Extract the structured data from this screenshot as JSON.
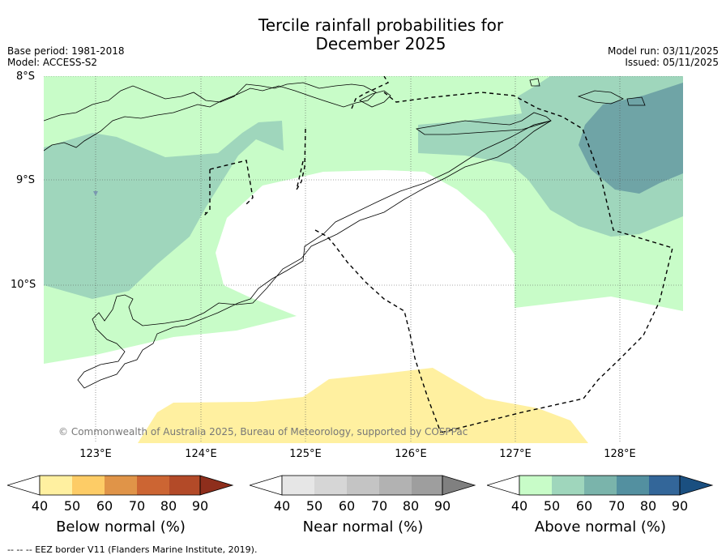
{
  "title_line1": "Tercile rainfall probabilities for",
  "title_line2": "December 2025",
  "base_period": "Base period: 1981-2018",
  "model": "Model: ACCESS-S2",
  "model_run": "Model run: 03/11/2025",
  "issued": "Issued: 05/11/2025",
  "lat_labels": [
    "8°S",
    "9°S",
    "10°S"
  ],
  "lon_labels": [
    "123°E",
    "124°E",
    "125°E",
    "126°E",
    "127°E",
    "128°E"
  ],
  "copyright": "© Commonwealth of Australia 2025, Bureau of Meteorology, supported by COSPPac",
  "colorbars": {
    "below": {
      "label": "Below normal (%)",
      "ticks": [
        "40",
        "50",
        "60",
        "70",
        "80",
        "90"
      ],
      "colors": [
        "#ffffff",
        "#fff0a0",
        "#fdcc66",
        "#e09448",
        "#cc6533",
        "#b34a28",
        "#8e2e1c"
      ]
    },
    "near": {
      "label": "Near normal (%)",
      "ticks": [
        "40",
        "50",
        "60",
        "70",
        "80",
        "90"
      ],
      "colors": [
        "#ffffff",
        "#e6e6e6",
        "#d6d6d6",
        "#c4c4c4",
        "#b2b2b2",
        "#9e9e9e",
        "#808080"
      ]
    },
    "above": {
      "label": "Above normal (%)",
      "ticks": [
        "40",
        "50",
        "60",
        "70",
        "80",
        "90"
      ],
      "colors": [
        "#ffffff",
        "#c8fcc8",
        "#9fd6bc",
        "#7ab4ab",
        "#5390a0",
        "#336699",
        "#1a4f80"
      ]
    }
  },
  "footer": "--  --  -- EEZ border V11 (Flanders Marine Institute, 2019)."
}
